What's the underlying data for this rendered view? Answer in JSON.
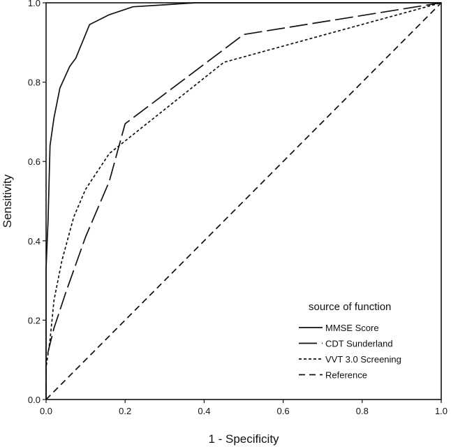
{
  "chart_data": {
    "type": "line",
    "title": "",
    "xlabel": "1 - Specificity",
    "ylabel": "Sensitivity",
    "xlim": [
      0,
      1
    ],
    "ylim": [
      0,
      1
    ],
    "xticks": [
      "0.0",
      "0.2",
      "0.4",
      "0.6",
      "0.8",
      "1.0"
    ],
    "yticks": [
      "0.0",
      "0.2",
      "0.4",
      "0.6",
      "0.8",
      "1.0"
    ],
    "grid": false,
    "legend": {
      "title": "source of function",
      "position": "bottom-right"
    },
    "series": [
      {
        "name": "MMSE Score",
        "dash": "solid",
        "color": "#111111",
        "points": [
          [
            0.0,
            0.0
          ],
          [
            0.0,
            0.33
          ],
          [
            0.005,
            0.45
          ],
          [
            0.01,
            0.64
          ],
          [
            0.02,
            0.71
          ],
          [
            0.035,
            0.785
          ],
          [
            0.06,
            0.84
          ],
          [
            0.075,
            0.86
          ],
          [
            0.11,
            0.945
          ],
          [
            0.16,
            0.97
          ],
          [
            0.22,
            0.99
          ],
          [
            0.3,
            0.995
          ],
          [
            0.38,
            1.0
          ],
          [
            1.0,
            1.0
          ]
        ]
      },
      {
        "name": "CDT Sunderland",
        "dash": "longdash",
        "color": "#111111",
        "points": [
          [
            0.0,
            0.0
          ],
          [
            0.0,
            0.1
          ],
          [
            0.02,
            0.18
          ],
          [
            0.05,
            0.27
          ],
          [
            0.1,
            0.41
          ],
          [
            0.16,
            0.55
          ],
          [
            0.2,
            0.695
          ],
          [
            0.5,
            0.92
          ],
          [
            1.0,
            1.0
          ]
        ]
      },
      {
        "name": "VVT 3.0 Screening",
        "dash": "shortdash",
        "color": "#111111",
        "points": [
          [
            0.0,
            0.0
          ],
          [
            0.0,
            0.08
          ],
          [
            0.01,
            0.15
          ],
          [
            0.02,
            0.25
          ],
          [
            0.04,
            0.35
          ],
          [
            0.07,
            0.46
          ],
          [
            0.1,
            0.53
          ],
          [
            0.16,
            0.62
          ],
          [
            0.45,
            0.85
          ],
          [
            1.0,
            1.0
          ]
        ]
      },
      {
        "name": "Reference",
        "dash": "dash",
        "color": "#111111",
        "points": [
          [
            0.0,
            0.0
          ],
          [
            1.0,
            1.0
          ]
        ]
      }
    ]
  }
}
